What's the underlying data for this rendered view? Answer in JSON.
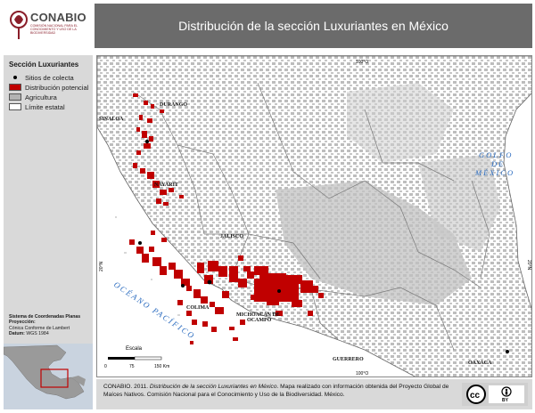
{
  "header": {
    "org_name": "CONABIO",
    "org_subtitle": "Comisión Nacional para el Conocimiento y Uso de la Biodiversidad",
    "title": "Distribución de la sección Luxuriantes en México"
  },
  "legend": {
    "title": "Sección Luxuriantes",
    "items": [
      {
        "label": "Sitios de colecta",
        "symbol": "point",
        "color": "#000000"
      },
      {
        "label": "Distribución potencial",
        "symbol": "fill",
        "color": "#c00000"
      },
      {
        "label": "Agricultura",
        "symbol": "fill",
        "color": "#b3b3b3"
      },
      {
        "label": "Límite estatal",
        "symbol": "fill",
        "color": "#ffffff"
      }
    ]
  },
  "coordinate_system": {
    "heading": "Sistema de Coordenadas Planas",
    "projection_label": "Proyección:",
    "projection": "Cónica Conforme de Lambert",
    "datum_label": "Datum:",
    "datum": "WGS 1984"
  },
  "map": {
    "graticule": {
      "top": "100°O",
      "bottom": "100°O",
      "left": "20°N",
      "right": "20°N"
    },
    "states": [
      "SINALOA",
      "DURANGO",
      "NAYARIT",
      "JALISCO",
      "COLIMA",
      "MICHOACÁN DE",
      "OCAMPO",
      "GUERRERO",
      "OAXACA"
    ],
    "water": {
      "gulf_line1": "GOLFO",
      "gulf_line2": "DE",
      "gulf_line3": "MÉXICO",
      "pacific": "OCÉANO PACÍFICO"
    },
    "scale": {
      "title": "Escala",
      "ticks": [
        "0",
        "75",
        "150 Km"
      ]
    },
    "colors": {
      "land": "#ffffff",
      "water": "#ffffff",
      "agriculture": "#bdbdbd",
      "distribution": "#c00000",
      "water_text": "#2a6bbf"
    }
  },
  "footer": {
    "credit_prefix": "CONABIO. 2011. ",
    "credit_title": "Distribución de la sección Luxuriantes en México",
    "credit_rest": ". Mapa realizado con información obtenida del Proyecto Global de Maíces Nativos. Comisión Nacional para el Conocimiento y Uso de la Biodiversidad. México.",
    "license": {
      "cc": "cc",
      "by": "BY"
    }
  }
}
